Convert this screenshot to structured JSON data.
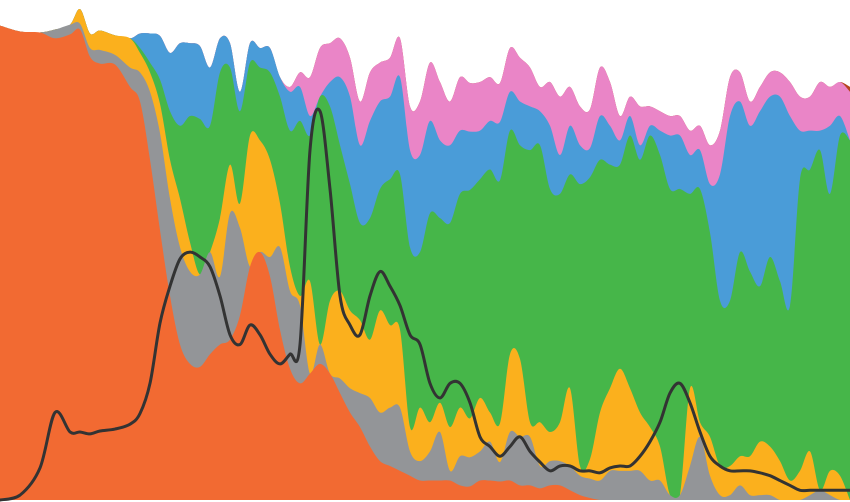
{
  "chart_data": {
    "type": "area",
    "stacked": true,
    "normalized": true,
    "title": "",
    "xlabel": "",
    "ylabel": "",
    "x": [
      0,
      20,
      40,
      55,
      70,
      80,
      90,
      100,
      115,
      130,
      140,
      150,
      160,
      170,
      180,
      190,
      200,
      210,
      220,
      230,
      240,
      250,
      260,
      270,
      280,
      290,
      300,
      310,
      320,
      330,
      340,
      350,
      360,
      370,
      380,
      390,
      400,
      410,
      420,
      430,
      440,
      450,
      460,
      470,
      480,
      490,
      500,
      510,
      520,
      530,
      540,
      550,
      560,
      570,
      580,
      590,
      600,
      610,
      620,
      630,
      640,
      650,
      660,
      670,
      680,
      690,
      700,
      710,
      720,
      730,
      740,
      750,
      760,
      770,
      780,
      790,
      800,
      810,
      820,
      830,
      840,
      850
    ],
    "ylim": [
      0,
      1
    ],
    "series": [
      {
        "color": "#f26a32",
        "values": [
          0.976,
          0.964,
          0.962,
          0.95,
          0.958,
          0.968,
          0.912,
          0.898,
          0.896,
          0.85,
          0.82,
          0.7,
          0.555,
          0.42,
          0.32,
          0.28,
          0.274,
          0.3,
          0.32,
          0.33,
          0.38,
          0.48,
          0.51,
          0.46,
          0.35,
          0.27,
          0.24,
          0.26,
          0.28,
          0.26,
          0.22,
          0.18,
          0.15,
          0.11,
          0.08,
          0.07,
          0.06,
          0.05,
          0.04,
          0.04,
          0.04,
          0.04,
          0.03,
          0.028,
          0.04,
          0.04,
          0.038,
          0.04,
          0.03,
          0.03,
          0.024,
          0.03,
          0.03,
          0.02,
          0.01,
          0.004,
          0.0,
          0.0,
          0.0,
          0.0,
          0.0,
          0.0,
          0.0,
          0.0,
          0.0,
          0.0,
          0.0,
          0.0,
          0.0,
          0.0,
          0.0,
          0.0,
          0.0,
          0.0,
          0.0,
          0.0,
          0.0,
          0.0,
          0.0,
          0.0,
          0.0,
          0.0
        ]
      },
      {
        "color": "#939598",
        "values": [
          0.0,
          0.0,
          0.0,
          0.018,
          0.02,
          0.012,
          0.018,
          0.028,
          0.02,
          0.04,
          0.06,
          0.14,
          0.2,
          0.2,
          0.2,
          0.19,
          0.19,
          0.21,
          0.14,
          0.26,
          0.18,
          0.0,
          0.0,
          0.04,
          0.17,
          0.16,
          0.16,
          0.0,
          0.04,
          0.0,
          0.03,
          0.05,
          0.07,
          0.1,
          0.1,
          0.12,
          0.13,
          0.05,
          0.04,
          0.06,
          0.1,
          0.02,
          0.06,
          0.06,
          0.06,
          0.08,
          0.04,
          0.1,
          0.1,
          0.1,
          0.046,
          0.05,
          0.05,
          0.05,
          0.04,
          0.04,
          0.04,
          0.06,
          0.06,
          0.06,
          0.06,
          0.04,
          0.04,
          0.01,
          0.01,
          0.07,
          0.13,
          0.05,
          0.01,
          0.01,
          0.03,
          0.01,
          0.01,
          0.01,
          0.0,
          0.0,
          0.0,
          0.01,
          0.02,
          0.01,
          0.0,
          0.0
        ]
      },
      {
        "color": "#fbb01d",
        "values": [
          0.0,
          0.0,
          0.0,
          0.0,
          0.0,
          0.03,
          0.03,
          0.04,
          0.04,
          0.06,
          0.04,
          0.04,
          0.06,
          0.08,
          0.1,
          0.06,
          0.0,
          0.0,
          0.12,
          0.1,
          0.05,
          0.27,
          0.23,
          0.2,
          0.09,
          0.05,
          0.02,
          0.19,
          0.0,
          0.15,
          0.18,
          0.16,
          0.15,
          0.12,
          0.21,
          0.17,
          0.16,
          0.05,
          0.11,
          0.06,
          0.06,
          0.09,
          0.1,
          0.08,
          0.11,
          0.06,
          0.08,
          0.16,
          0.16,
          0.03,
          0.09,
          0.06,
          0.08,
          0.16,
          0.02,
          0.04,
          0.14,
          0.17,
          0.21,
          0.17,
          0.12,
          0.11,
          0.07,
          0.0,
          0.0,
          0.16,
          0.03,
          0.08,
          0.06,
          0.06,
          0.06,
          0.08,
          0.11,
          0.1,
          0.08,
          0.04,
          0.06,
          0.09,
          0.0,
          0.05,
          0.05,
          0.0
        ]
      },
      {
        "color": "#46b649",
        "values": [
          0.0,
          0.0,
          0.0,
          0.0,
          0.0,
          0.0,
          0.0,
          0.0,
          0.0,
          0.0,
          0.01,
          0.02,
          0.05,
          0.1,
          0.15,
          0.26,
          0.32,
          0.26,
          0.3,
          0.2,
          0.19,
          0.15,
          0.15,
          0.18,
          0.22,
          0.28,
          0.36,
          0.3,
          0.51,
          0.4,
          0.3,
          0.26,
          0.2,
          0.25,
          0.25,
          0.3,
          0.32,
          0.37,
          0.32,
          0.43,
          0.38,
          0.42,
          0.44,
          0.47,
          0.45,
          0.5,
          0.5,
          0.46,
          0.44,
          0.56,
          0.57,
          0.5,
          0.47,
          0.44,
          0.58,
          0.58,
          0.52,
          0.46,
          0.42,
          0.52,
          0.52,
          0.6,
          0.6,
          0.63,
          0.63,
          0.4,
          0.48,
          0.42,
          0.34,
          0.34,
          0.42,
          0.38,
          0.32,
          0.39,
          0.37,
          0.36,
          0.6,
          0.58,
          0.7,
          0.57,
          0.7,
          0.74
        ]
      },
      {
        "color": "#4a9cd8",
        "values": [
          0.0,
          0.0,
          0.0,
          0.0,
          0.0,
          0.0,
          0.0,
          0.0,
          0.0,
          0.0,
          0.03,
          0.06,
          0.09,
          0.12,
          0.17,
          0.15,
          0.15,
          0.12,
          0.07,
          0.05,
          0.04,
          0.04,
          0.04,
          0.05,
          0.04,
          0.08,
          0.07,
          0.04,
          0.0,
          0.05,
          0.14,
          0.18,
          0.16,
          0.2,
          0.18,
          0.17,
          0.2,
          0.2,
          0.2,
          0.19,
          0.16,
          0.16,
          0.13,
          0.12,
          0.1,
          0.1,
          0.12,
          0.08,
          0.09,
          0.09,
          0.07,
          0.13,
          0.08,
          0.1,
          0.08,
          0.06,
          0.09,
          0.08,
          0.05,
          0.04,
          0.03,
          0.02,
          0.05,
          0.11,
          0.11,
          0.08,
          0.08,
          0.1,
          0.26,
          0.38,
          0.31,
          0.3,
          0.36,
          0.33,
          0.38,
          0.39,
          0.1,
          0.08,
          0.04,
          0.14,
          0.04,
          0.0
        ]
      },
      {
        "color": "#ea85c7",
        "values": [
          0.0,
          0.0,
          0.0,
          0.0,
          0.0,
          0.0,
          0.0,
          0.0,
          0.0,
          0.0,
          0.0,
          0.0,
          0.0,
          0.0,
          0.0,
          0.0,
          0.0,
          0.0,
          0.0,
          0.0,
          0.0,
          0.0,
          0.0,
          0.0,
          0.0,
          0.01,
          0.03,
          0.08,
          0.1,
          0.08,
          0.08,
          0.08,
          0.09,
          0.1,
          0.08,
          0.08,
          0.08,
          0.09,
          0.11,
          0.12,
          0.12,
          0.09,
          0.11,
          0.1,
          0.1,
          0.09,
          0.08,
          0.09,
          0.09,
          0.08,
          0.05,
          0.09,
          0.12,
          0.08,
          0.08,
          0.08,
          0.1,
          0.09,
          0.05,
          0.04,
          0.08,
          0.04,
          0.04,
          0.04,
          0.04,
          0.05,
          0.05,
          0.08,
          0.09,
          0.08,
          0.06,
          0.05,
          0.05,
          0.05,
          0.05,
          0.07,
          0.07,
          0.07,
          0.1,
          0.08,
          0.07,
          0.1
        ]
      },
      {
        "color": "#b5451f",
        "values": [
          0.0,
          0.0,
          0.0,
          0.0,
          0.0,
          0.0,
          0.0,
          0.0,
          0.0,
          0.0,
          0.0,
          0.0,
          0.0,
          0.0,
          0.0,
          0.0,
          0.0,
          0.0,
          0.0,
          0.0,
          0.0,
          0.0,
          0.0,
          0.0,
          0.0,
          0.0,
          0.0,
          0.0,
          0.0,
          0.0,
          0.0,
          0.0,
          0.0,
          0.0,
          0.0,
          0.0,
          0.0,
          0.0,
          0.0,
          0.0,
          0.0,
          0.0,
          0.0,
          0.0,
          0.0,
          0.0,
          0.0,
          0.0,
          0.0,
          0.0,
          0.0,
          0.0,
          0.0,
          0.0,
          0.0,
          0.0,
          0.0,
          0.0,
          0.0,
          0.0,
          0.0,
          0.0,
          0.0,
          0.0,
          0.0,
          0.0,
          0.0,
          0.0,
          0.0,
          0.0,
          0.0,
          0.0,
          0.0,
          0.0,
          0.0,
          0.0,
          0.0,
          0.0,
          0.0,
          0.0,
          0.0,
          0.01
        ]
      }
    ],
    "line_series": {
      "color": "#333333",
      "values": [
        0.0,
        0.01,
        0.066,
        0.18,
        0.14,
        0.14,
        0.136,
        0.142,
        0.146,
        0.156,
        0.178,
        0.24,
        0.364,
        0.44,
        0.496,
        0.51,
        0.5,
        0.48,
        0.42,
        0.34,
        0.32,
        0.36,
        0.34,
        0.3,
        0.28,
        0.3,
        0.32,
        0.72,
        0.8,
        0.64,
        0.42,
        0.36,
        0.34,
        0.42,
        0.47,
        0.44,
        0.4,
        0.34,
        0.32,
        0.24,
        0.21,
        0.24,
        0.24,
        0.2,
        0.13,
        0.11,
        0.09,
        0.11,
        0.13,
        0.1,
        0.078,
        0.06,
        0.07,
        0.07,
        0.06,
        0.06,
        0.056,
        0.066,
        0.07,
        0.07,
        0.09,
        0.12,
        0.16,
        0.22,
        0.24,
        0.2,
        0.14,
        0.09,
        0.07,
        0.06,
        0.06,
        0.06,
        0.056,
        0.05,
        0.04,
        0.03,
        0.02,
        0.02,
        0.02,
        0.02,
        0.02,
        0.02
      ]
    },
    "grid": false,
    "legend": "none"
  }
}
